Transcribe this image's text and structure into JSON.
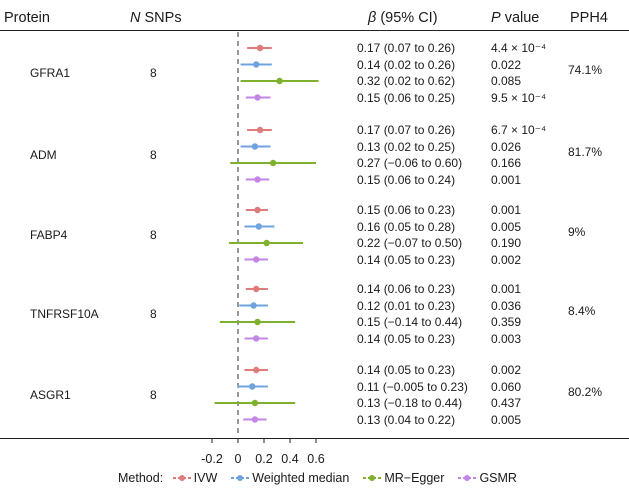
{
  "chart_data": {
    "type": "forest",
    "headers": {
      "protein": "Protein",
      "n_snps_italic": "N",
      "n_snps_rest": " SNPs",
      "beta_italic": "β",
      "beta_rest": " (95% CI)",
      "p_italic": "P",
      "p_rest": " value",
      "pph4": "PPH4"
    },
    "xlim": [
      -0.2,
      0.6
    ],
    "xticks": [
      "-0.2",
      "0",
      "0.2",
      "0.4",
      "0.6"
    ],
    "xtick_values": [
      -0.2,
      0,
      0.2,
      0.4,
      0.6
    ],
    "reference_line": 0,
    "methods": [
      {
        "name": "IVW",
        "color": "#e07b7b"
      },
      {
        "name": "Weighted median",
        "color": "#6fa3e0"
      },
      {
        "name": "MR−Egger",
        "color": "#7fb02e"
      },
      {
        "name": "GSMR",
        "color": "#c486e6"
      }
    ],
    "legend_title": "Method:",
    "proteins": [
      {
        "name": "GFRA1",
        "n_snps": "8",
        "pph4": "74.1%",
        "results": [
          {
            "beta": 0.17,
            "lo": 0.07,
            "hi": 0.26,
            "text": "0.17 (0.07 to 0.26)",
            "p": "4.4 × 10⁻⁴"
          },
          {
            "beta": 0.14,
            "lo": 0.02,
            "hi": 0.26,
            "text": "0.14 (0.02 to 0.26)",
            "p": "0.022"
          },
          {
            "beta": 0.32,
            "lo": 0.02,
            "hi": 0.62,
            "text": "0.32 (0.02 to 0.62)",
            "p": "0.085"
          },
          {
            "beta": 0.15,
            "lo": 0.06,
            "hi": 0.25,
            "text": "0.15 (0.06 to 0.25)",
            "p": "9.5 × 10⁻⁴"
          }
        ]
      },
      {
        "name": "ADM",
        "n_snps": "8",
        "pph4": "81.7%",
        "results": [
          {
            "beta": 0.17,
            "lo": 0.07,
            "hi": 0.26,
            "text": "0.17 (0.07 to 0.26)",
            "p": "6.7 × 10⁻⁴"
          },
          {
            "beta": 0.13,
            "lo": 0.02,
            "hi": 0.25,
            "text": "0.13 (0.02 to 0.25)",
            "p": "0.026"
          },
          {
            "beta": 0.27,
            "lo": -0.06,
            "hi": 0.6,
            "text": "0.27 (−0.06 to 0.60)",
            "p": "0.166"
          },
          {
            "beta": 0.15,
            "lo": 0.06,
            "hi": 0.24,
            "text": "0.15 (0.06 to 0.24)",
            "p": "0.001"
          }
        ]
      },
      {
        "name": "FABP4",
        "n_snps": "8",
        "pph4": "9%",
        "results": [
          {
            "beta": 0.15,
            "lo": 0.06,
            "hi": 0.23,
            "text": "0.15 (0.06 to 0.23)",
            "p": "0.001"
          },
          {
            "beta": 0.16,
            "lo": 0.05,
            "hi": 0.28,
            "text": "0.16 (0.05 to 0.28)",
            "p": "0.005"
          },
          {
            "beta": 0.22,
            "lo": -0.07,
            "hi": 0.5,
            "text": "0.22 (−0.07 to 0.50)",
            "p": "0.190"
          },
          {
            "beta": 0.14,
            "lo": 0.05,
            "hi": 0.23,
            "text": "0.14 (0.05 to 0.23)",
            "p": "0.002"
          }
        ]
      },
      {
        "name": "TNFRSF10A",
        "n_snps": "8",
        "pph4": "8.4%",
        "results": [
          {
            "beta": 0.14,
            "lo": 0.06,
            "hi": 0.23,
            "text": "0.14 (0.06 to 0.23)",
            "p": "0.001"
          },
          {
            "beta": 0.12,
            "lo": 0.01,
            "hi": 0.23,
            "text": "0.12 (0.01 to 0.23)",
            "p": "0.036"
          },
          {
            "beta": 0.15,
            "lo": -0.14,
            "hi": 0.44,
            "text": "0.15 (−0.14 to 0.44)",
            "p": "0.359"
          },
          {
            "beta": 0.14,
            "lo": 0.05,
            "hi": 0.23,
            "text": "0.14 (0.05 to 0.23)",
            "p": "0.003"
          }
        ]
      },
      {
        "name": "ASGR1",
        "n_snps": "8",
        "pph4": "80.2%",
        "results": [
          {
            "beta": 0.14,
            "lo": 0.05,
            "hi": 0.23,
            "text": "0.14 (0.05 to 0.23)",
            "p": "0.002"
          },
          {
            "beta": 0.11,
            "lo": -0.005,
            "hi": 0.23,
            "text": "0.11 (−0.005 to 0.23)",
            "p": "0.060"
          },
          {
            "beta": 0.13,
            "lo": -0.18,
            "hi": 0.44,
            "text": "0.13 (−0.18 to 0.44)",
            "p": "0.437"
          },
          {
            "beta": 0.13,
            "lo": 0.04,
            "hi": 0.22,
            "text": "0.13 (0.04 to 0.22)",
            "p": "0.005"
          }
        ]
      }
    ]
  }
}
